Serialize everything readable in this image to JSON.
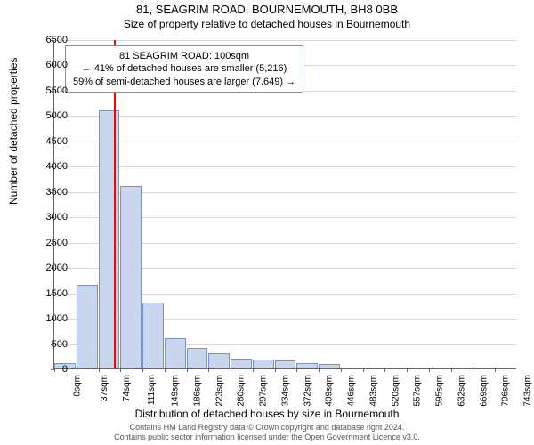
{
  "titles": {
    "line1": "81, SEAGRIM ROAD, BOURNEMOUTH, BH8 0BB",
    "line2": "Size of property relative to detached houses in Bournemouth"
  },
  "y_axis": {
    "label": "Number of detached properties",
    "min": 0,
    "max": 6500,
    "step": 500
  },
  "x_axis": {
    "label": "Distribution of detached houses by size in Bournemouth",
    "ticks": [
      "0sqm",
      "37sqm",
      "74sqm",
      "111sqm",
      "149sqm",
      "186sqm",
      "223sqm",
      "260sqm",
      "297sqm",
      "334sqm",
      "372sqm",
      "409sqm",
      "446sqm",
      "483sqm",
      "520sqm",
      "557sqm",
      "595sqm",
      "632sqm",
      "669sqm",
      "706sqm",
      "743sqm"
    ]
  },
  "histogram": {
    "type": "histogram",
    "bar_fill": "#c9d6ee",
    "bar_border": "#7a93c4",
    "bar_count": 21,
    "values": [
      100,
      1650,
      5100,
      3600,
      1300,
      600,
      400,
      300,
      200,
      180,
      150,
      100,
      80,
      0,
      0,
      0,
      0,
      0,
      0,
      0,
      0
    ]
  },
  "marker": {
    "position_sqm": 100,
    "max_sqm": 780,
    "color": "#ff0000"
  },
  "info_box": {
    "line1": "81 SEAGRIM ROAD: 100sqm",
    "line2": "← 41% of detached houses are smaller (5,216)",
    "line3": "59% of semi-detached houses are larger (7,649) →",
    "border": "#7a93c4",
    "bg": "#ffffff"
  },
  "footer": {
    "line1": "Contains HM Land Registry data © Crown copyright and database right 2024.",
    "line2": "Contains public sector information licensed under the Open Government Licence v3.0."
  },
  "colors": {
    "grid": "#d9d9d9",
    "axis": "#666666",
    "text": "#000000",
    "footer_text": "#555555",
    "background": "#ffffff"
  }
}
